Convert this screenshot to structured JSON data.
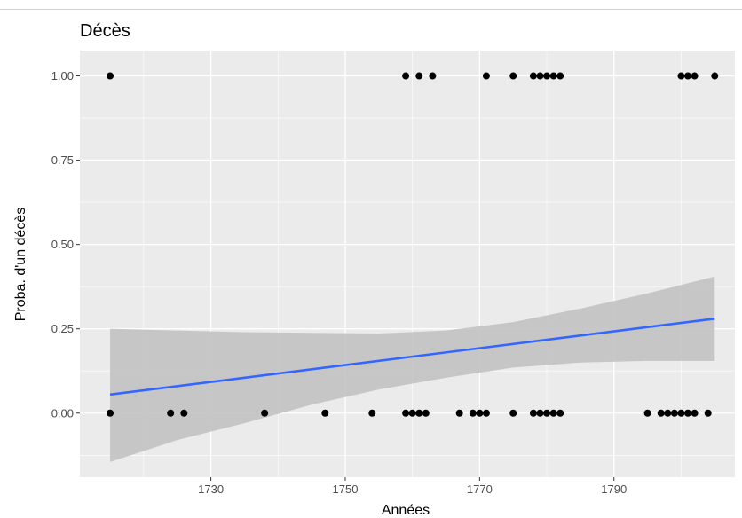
{
  "chart_data": {
    "type": "scatter",
    "title": "Décès",
    "xlabel": "Années",
    "ylabel": "Proba. d'un décès",
    "xlim": [
      1710.5,
      1808
    ],
    "ylim": [
      -0.19,
      1.075
    ],
    "x_ticks": [
      1730,
      1750,
      1770,
      1790
    ],
    "x_tick_labels": [
      "1730",
      "1750",
      "1770",
      "1790"
    ],
    "y_ticks": [
      0,
      0.25,
      0.5,
      0.75,
      1
    ],
    "y_tick_labels": [
      "0.00",
      "0.25",
      "0.50",
      "0.75",
      "1.00"
    ],
    "grid": true,
    "legend": "none",
    "colors": {
      "panel": "#ebebeb",
      "grid": "#ffffff",
      "points": "#000000",
      "fit_line": "#3366ff",
      "ribbon": "#c2c2c2"
    },
    "series": [
      {
        "type": "points",
        "x": [
          1715,
          1759,
          1761,
          1763,
          1771,
          1775,
          1778,
          1779,
          1780,
          1781,
          1782,
          1800,
          1801,
          1802,
          1805,
          1715,
          1724,
          1726,
          1738,
          1747,
          1754,
          1759,
          1760,
          1761,
          1762,
          1767,
          1769,
          1770,
          1771,
          1775,
          1778,
          1779,
          1780,
          1781,
          1782,
          1795,
          1797,
          1798,
          1799,
          1800,
          1801,
          1802,
          1804
        ],
        "y": [
          1,
          1,
          1,
          1,
          1,
          1,
          1,
          1,
          1,
          1,
          1,
          1,
          1,
          1,
          1,
          0,
          0,
          0,
          0,
          0,
          0,
          0,
          0,
          0,
          0,
          0,
          0,
          0,
          0,
          0,
          0,
          0,
          0,
          0,
          0,
          0,
          0,
          0,
          0,
          0,
          0,
          0,
          0
        ]
      },
      {
        "type": "smooth",
        "method": "linear",
        "x": [
          1715,
          1805
        ],
        "y": [
          0.055,
          0.28
        ],
        "ribbon_x": [
          1715,
          1725,
          1735,
          1745,
          1755,
          1765,
          1775,
          1785,
          1795,
          1805
        ],
        "ribbon_upper": [
          0.25,
          0.245,
          0.24,
          0.238,
          0.236,
          0.245,
          0.27,
          0.31,
          0.355,
          0.405
        ],
        "ribbon_lower": [
          -0.145,
          -0.08,
          -0.03,
          0.025,
          0.07,
          0.105,
          0.135,
          0.15,
          0.155,
          0.155
        ]
      }
    ]
  }
}
